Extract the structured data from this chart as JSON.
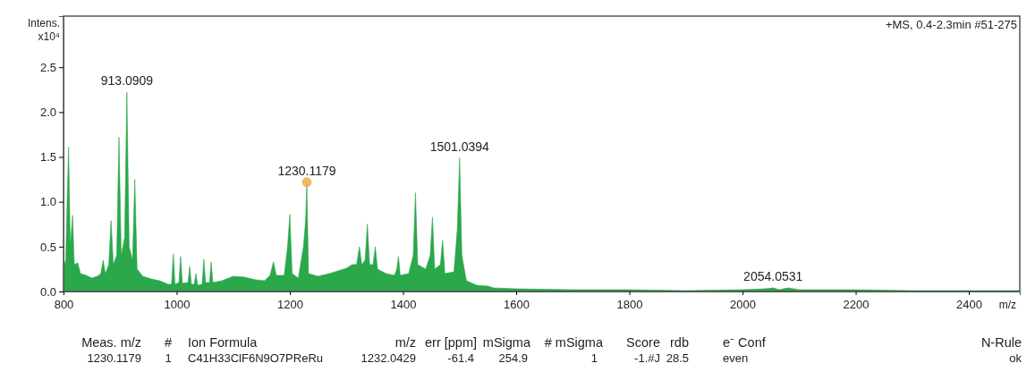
{
  "chart_data": {
    "type": "area",
    "subtitle": "+MS, 0.4-2.3min #51-275",
    "xlabel": "m/z",
    "ylabel": "Intens. x10⁴",
    "xlim": [
      800,
      2490
    ],
    "xticks": [
      800,
      1000,
      1200,
      1400,
      1600,
      1800,
      2000,
      2200,
      2400
    ],
    "ylim": [
      0,
      3.07
    ],
    "yticks": [
      {
        "value": 0,
        "label": "0.0"
      },
      {
        "value": 0.5,
        "label": "0.5"
      },
      {
        "value": 1,
        "label": "1.0"
      },
      {
        "value": 1.5,
        "label": "1.5"
      },
      {
        "value": 2,
        "label": "2.0"
      },
      {
        "value": 2.5,
        "label": "2.5"
      }
    ],
    "grid": false,
    "series": [
      {
        "color": "#2aa84a",
        "x": [
          800,
          804,
          806,
          809,
          812,
          816,
          819,
          825,
          830,
          840,
          850,
          860,
          866,
          870,
          874,
          880,
          884,
          888,
          894,
          898,
          902,
          908,
          912,
          916,
          922,
          926,
          930,
          940,
          955,
          970,
          985,
          991,
          994,
          997,
          1004,
          1007,
          1010,
          1020,
          1023,
          1026,
          1031,
          1034,
          1037,
          1045,
          1048,
          1051,
          1058,
          1061,
          1064,
          1080,
          1100,
          1120,
          1140,
          1155,
          1165,
          1171,
          1176,
          1190,
          1196,
          1200,
          1204,
          1215,
          1224,
          1228,
          1230,
          1233,
          1250,
          1270,
          1290,
          1300,
          1310,
          1318,
          1323,
          1327,
          1333,
          1337,
          1341,
          1347,
          1351,
          1355,
          1370,
          1385,
          1389,
          1392,
          1395,
          1410,
          1418,
          1422,
          1426,
          1440,
          1448,
          1452,
          1456,
          1466,
          1470,
          1474,
          1490,
          1496,
          1500,
          1504,
          1512,
          1530,
          1550,
          1560,
          1600,
          1700,
          1800,
          1900,
          2000,
          2040,
          2054,
          2065,
          2080,
          2100,
          2200,
          2300,
          2400,
          2490
        ],
        "values": [
          0.28,
          0.35,
          0.9,
          1.61,
          0.5,
          0.85,
          0.3,
          0.32,
          0.2,
          0.18,
          0.15,
          0.17,
          0.2,
          0.35,
          0.2,
          0.3,
          0.79,
          0.3,
          0.4,
          1.72,
          0.4,
          0.6,
          2.22,
          0.5,
          0.35,
          1.25,
          0.25,
          0.17,
          0.14,
          0.12,
          0.08,
          0.08,
          0.42,
          0.08,
          0.1,
          0.39,
          0.09,
          0.1,
          0.28,
          0.08,
          0.08,
          0.2,
          0.07,
          0.08,
          0.36,
          0.1,
          0.1,
          0.33,
          0.1,
          0.12,
          0.17,
          0.16,
          0.13,
          0.12,
          0.18,
          0.33,
          0.18,
          0.18,
          0.5,
          0.86,
          0.2,
          0.15,
          0.5,
          0.8,
          1.2,
          0.2,
          0.17,
          0.2,
          0.24,
          0.26,
          0.3,
          0.3,
          0.5,
          0.3,
          0.35,
          0.75,
          0.3,
          0.3,
          0.5,
          0.25,
          0.2,
          0.18,
          0.25,
          0.39,
          0.18,
          0.2,
          0.4,
          1.1,
          0.3,
          0.25,
          0.4,
          0.83,
          0.25,
          0.3,
          0.57,
          0.2,
          0.22,
          0.7,
          1.49,
          0.4,
          0.12,
          0.07,
          0.06,
          0.04,
          0.03,
          0.02,
          0.02,
          0.01,
          0.02,
          0.03,
          0.04,
          0.02,
          0.04,
          0.02,
          0.02,
          0.01,
          0.01,
          0.01
        ]
      },
      {
        "type": "scatter",
        "color": "#f5a847",
        "marker": "circle",
        "x": [
          1230
        ],
        "values": [
          1.22
        ]
      }
    ],
    "annotations": [
      {
        "text": "913.0909",
        "x": 912,
        "y": 2.22
      },
      {
        "text": "1230.1179",
        "x": 1230,
        "y": 1.22
      },
      {
        "text": "1501.0394",
        "x": 1500,
        "y": 1.49
      },
      {
        "text": "2054.0531",
        "x": 2054,
        "y": 0.04
      },
      "Meas. m/z",
      "#",
      "Ion Formula",
      "m/z",
      "err [ppm]",
      "mSigma",
      "# mSigma",
      "Score",
      "rdb",
      "e⁻ Conf",
      "N-Rule",
      "1230.1179",
      "1",
      "C41H33ClF6N9O7PReRu",
      "1232.0429",
      "-61.4",
      "254.9",
      "1",
      "-1.#J",
      "28.5",
      "even",
      "ok"
    ]
  }
}
